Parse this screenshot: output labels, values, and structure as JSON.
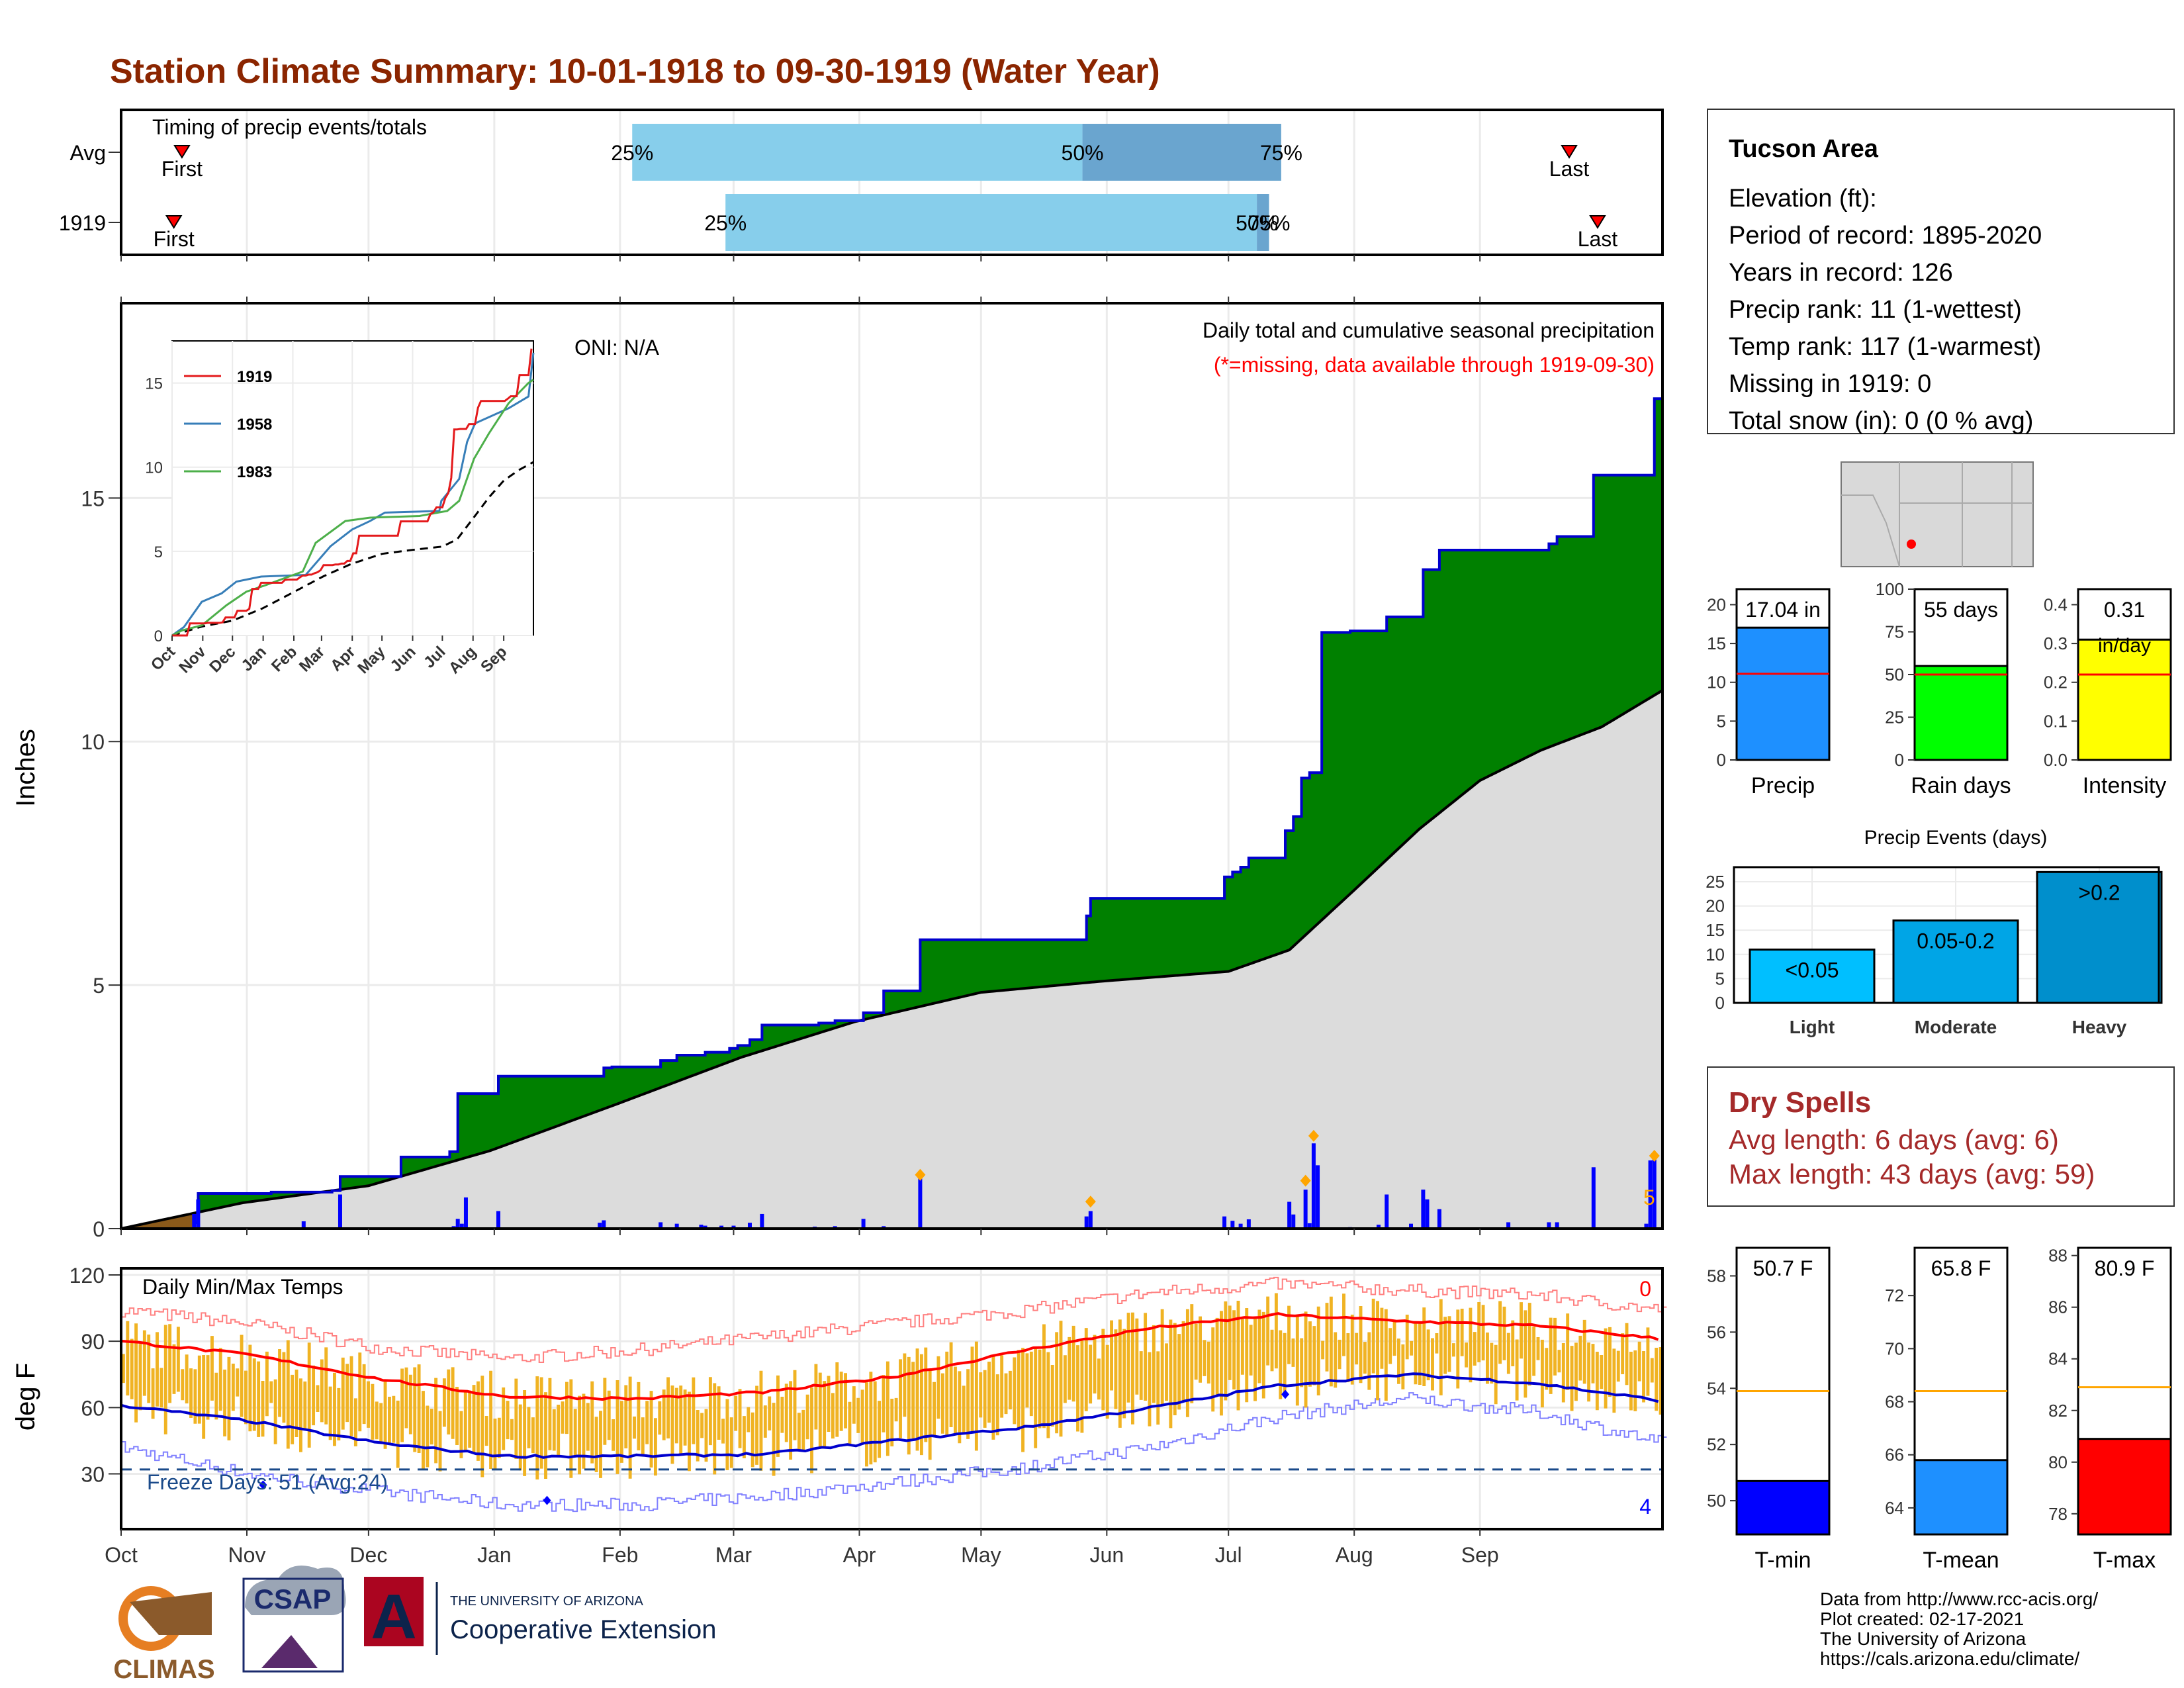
{
  "title": "Station Climate Summary: 10-01-1918 to 09-30-1919 (Water Year)",
  "colors": {
    "title": "#8b2500",
    "precip_bar": "#1e90ff",
    "rain_days": "#00ff00",
    "intensity": "#ffff00",
    "temp_range": "#f0b323",
    "cum_above": "#008000",
    "cum_below": "#8b5a1a",
    "avg_fill": "#dcdcdc",
    "tmin": "#0000ff",
    "tmean": "#1e90ff",
    "tmax": "#ff0000",
    "dry_spell": "#a52a2a"
  },
  "months": [
    "Oct",
    "Nov",
    "Dec",
    "Jan",
    "Feb",
    "Mar",
    "Apr",
    "May",
    "Jun",
    "Jul",
    "Aug",
    "Sep"
  ],
  "timing": {
    "title": "Timing of precip events/totals",
    "rows": [
      {
        "label": "Avg",
        "first_label": "First",
        "last_label": "Last",
        "first_day": 15,
        "last_day": 357,
        "p25": 126,
        "p50": 237,
        "p75": 286,
        "l25": "25%",
        "l50": "50%",
        "l75": "75%"
      },
      {
        "label": "1919",
        "first_label": "First",
        "last_label": "Last",
        "first_day": 13,
        "last_day": 364,
        "p25": 149,
        "p50": 280,
        "p75": 283,
        "l25": "25%",
        "l50": "50%",
        "l75": "75%"
      }
    ]
  },
  "info": {
    "title": "Tucson Area",
    "lines": [
      "Elevation (ft):",
      "Period of record: 1895-2020",
      "Years in record: 126",
      "Precip rank: 11 (1-wettest)",
      "Temp rank: 117 (1-warmest)",
      "Missing in 1919: 0",
      "Total snow (in): 0 (0 % avg)"
    ]
  },
  "precip": {
    "ylabel": "Inches",
    "note": "Daily total and cumulative seasonal precipitation",
    "missing_note": "(*=missing, data available through 1919-09-30)",
    "oni": "ONI: N/A",
    "end_label": "5",
    "y_ticks": [
      0,
      5,
      10,
      15
    ],
    "ylim": [
      0,
      19
    ],
    "cum_1919": [
      [
        0,
        0
      ],
      [
        18,
        0.12
      ],
      [
        19,
        0.72
      ],
      [
        35,
        0.72
      ],
      [
        37,
        0.75
      ],
      [
        45,
        0.75
      ],
      [
        52,
        0.78
      ],
      [
        54,
        1.07
      ],
      [
        67,
        1.07
      ],
      [
        69,
        1.47
      ],
      [
        73,
        1.47
      ],
      [
        81,
        1.58
      ],
      [
        83,
        2.77
      ],
      [
        91,
        2.77
      ],
      [
        93,
        3.13
      ],
      [
        117,
        3.13
      ],
      [
        119,
        3.3
      ],
      [
        121,
        3.32
      ],
      [
        132,
        3.32
      ],
      [
        133,
        3.45
      ],
      [
        135,
        3.45
      ],
      [
        137,
        3.56
      ],
      [
        142,
        3.56
      ],
      [
        144,
        3.62
      ],
      [
        148,
        3.62
      ],
      [
        150,
        3.7
      ],
      [
        152,
        3.76
      ],
      [
        155,
        3.88
      ],
      [
        158,
        4.18
      ],
      [
        170,
        4.18
      ],
      [
        172,
        4.22
      ],
      [
        176,
        4.27
      ],
      [
        181,
        4.27
      ],
      [
        183,
        4.43
      ],
      [
        187,
        4.43
      ],
      [
        188,
        4.88
      ],
      [
        195,
        4.88
      ],
      [
        197,
        5.93
      ],
      [
        237,
        5.93
      ],
      [
        238,
        6.42
      ],
      [
        239,
        6.78
      ],
      [
        267,
        6.78
      ],
      [
        271,
        6.78
      ],
      [
        272,
        7.22
      ],
      [
        274,
        7.32
      ],
      [
        276,
        7.42
      ],
      [
        278,
        7.61
      ],
      [
        285,
        7.61
      ],
      [
        287,
        8.17
      ],
      [
        289,
        8.46
      ],
      [
        291,
        9.25
      ],
      [
        293,
        9.36
      ],
      [
        296,
        12.24
      ],
      [
        300,
        12.24
      ],
      [
        303,
        12.27
      ],
      [
        310,
        12.27
      ],
      [
        312,
        12.56
      ],
      [
        318,
        12.56
      ],
      [
        321,
        13.53
      ],
      [
        325,
        13.93
      ],
      [
        350,
        13.93
      ],
      [
        352,
        14.06
      ],
      [
        354,
        14.21
      ],
      [
        362,
        14.21
      ],
      [
        363,
        15.47
      ],
      [
        376,
        15.47
      ],
      [
        378,
        17.04
      ],
      [
        380,
        17.04
      ]
    ],
    "cum_avg": [
      [
        0,
        0
      ],
      [
        30,
        0.53
      ],
      [
        61,
        0.88
      ],
      [
        91,
        1.6
      ],
      [
        122,
        2.55
      ],
      [
        153,
        3.52
      ],
      [
        181,
        4.25
      ],
      [
        212,
        4.85
      ],
      [
        242,
        5.08
      ],
      [
        273,
        5.28
      ],
      [
        288,
        5.72
      ],
      [
        304,
        6.95
      ],
      [
        320,
        8.2
      ],
      [
        335,
        9.2
      ],
      [
        350,
        9.82
      ],
      [
        365,
        10.3
      ],
      [
        380,
        11.05
      ]
    ],
    "daily": [
      [
        18,
        0.3
      ],
      [
        19,
        0.6
      ],
      [
        45,
        0.15
      ],
      [
        54,
        0.7
      ],
      [
        82,
        0.05
      ],
      [
        83,
        0.2
      ],
      [
        84,
        0.1
      ],
      [
        85,
        0.64
      ],
      [
        93,
        0.36
      ],
      [
        118,
        0.12
      ],
      [
        119,
        0.17
      ],
      [
        133,
        0.13
      ],
      [
        137,
        0.1
      ],
      [
        143,
        0.08
      ],
      [
        144,
        0.06
      ],
      [
        148,
        0.06
      ],
      [
        151,
        0.06
      ],
      [
        155,
        0.12
      ],
      [
        158,
        0.3
      ],
      [
        171,
        0.04
      ],
      [
        176,
        0.05
      ],
      [
        183,
        0.2
      ],
      [
        188,
        0.05
      ],
      [
        197,
        1.05
      ],
      [
        238,
        0.25
      ],
      [
        239,
        0.36
      ],
      [
        272,
        0.25
      ],
      [
        274,
        0.16
      ],
      [
        276,
        0.1
      ],
      [
        278,
        0.19
      ],
      [
        288,
        0.55
      ],
      [
        289,
        0.29
      ],
      [
        292,
        0.8
      ],
      [
        293,
        0.11
      ],
      [
        294,
        1.75
      ],
      [
        295,
        1.3
      ],
      [
        303,
        0.03
      ],
      [
        310,
        0.08
      ],
      [
        312,
        0.7
      ],
      [
        318,
        0.1
      ],
      [
        321,
        0.8
      ],
      [
        322,
        0.6
      ],
      [
        325,
        0.4
      ],
      [
        342,
        0.13
      ],
      [
        352,
        0.13
      ],
      [
        354,
        0.13
      ],
      [
        363,
        1.26
      ],
      [
        376,
        0.1
      ],
      [
        377,
        1.4
      ],
      [
        378,
        1.44
      ]
    ],
    "diamonds": [
      [
        197,
        1.05
      ],
      [
        239,
        0.5
      ],
      [
        294,
        1.85
      ],
      [
        292,
        0.93
      ],
      [
        378,
        1.44
      ]
    ]
  },
  "inset": {
    "series": [
      {
        "name": "1919",
        "color": "#e41a1c"
      },
      {
        "name": "1958",
        "color": "#377eb8"
      },
      {
        "name": "1983",
        "color": "#4daf4a"
      }
    ],
    "y_ticks": [
      0,
      5,
      10,
      15
    ],
    "ylim": [
      0,
      17.5
    ],
    "months": [
      "Oct",
      "Nov",
      "Dec",
      "Jan",
      "Feb",
      "Mar",
      "Apr",
      "May",
      "Jun",
      "Jul",
      "Aug",
      "Sep"
    ],
    "s1958": [
      [
        0,
        0
      ],
      [
        12,
        0.5
      ],
      [
        30,
        2.0
      ],
      [
        50,
        2.5
      ],
      [
        65,
        3.2
      ],
      [
        90,
        3.5
      ],
      [
        135,
        3.6
      ],
      [
        160,
        5.3
      ],
      [
        182,
        6.3
      ],
      [
        200,
        6.8
      ],
      [
        215,
        7.3
      ],
      [
        270,
        7.4
      ],
      [
        272,
        8.0
      ],
      [
        290,
        9.3
      ],
      [
        298,
        11.5
      ],
      [
        306,
        12.6
      ],
      [
        340,
        13.5
      ],
      [
        360,
        14.2
      ],
      [
        365,
        16.8
      ]
    ],
    "s1983": [
      [
        0,
        0
      ],
      [
        10,
        0.3
      ],
      [
        30,
        0.6
      ],
      [
        55,
        1.8
      ],
      [
        75,
        2.6
      ],
      [
        95,
        3.0
      ],
      [
        132,
        3.8
      ],
      [
        145,
        5.5
      ],
      [
        175,
        6.8
      ],
      [
        200,
        7.0
      ],
      [
        250,
        7.1
      ],
      [
        278,
        7.4
      ],
      [
        290,
        8.0
      ],
      [
        305,
        10.5
      ],
      [
        320,
        12.0
      ],
      [
        340,
        13.8
      ],
      [
        360,
        15.0
      ],
      [
        365,
        15.2
      ]
    ],
    "avg": [
      [
        0,
        0
      ],
      [
        30,
        0.53
      ],
      [
        61,
        0.88
      ],
      [
        91,
        1.6
      ],
      [
        122,
        2.55
      ],
      [
        153,
        3.52
      ],
      [
        181,
        4.25
      ],
      [
        212,
        4.85
      ],
      [
        242,
        5.08
      ],
      [
        273,
        5.28
      ],
      [
        288,
        5.72
      ],
      [
        304,
        6.95
      ],
      [
        320,
        8.2
      ],
      [
        335,
        9.2
      ],
      [
        350,
        9.82
      ],
      [
        365,
        10.3
      ]
    ]
  },
  "stats": {
    "precip": {
      "value": 17.04,
      "avg": 11.1,
      "label": "17.04 in",
      "xlabel": "Precip",
      "ticks": [
        0,
        5,
        10,
        15,
        20
      ],
      "ylim": [
        0,
        22
      ]
    },
    "rain_days": {
      "value": 55,
      "avg": 50,
      "label": "55 days",
      "xlabel": "Rain days",
      "ticks": [
        0,
        25,
        50,
        75,
        100
      ],
      "ylim": [
        0,
        100
      ]
    },
    "intensity": {
      "value": 0.31,
      "avg": 0.22,
      "label": "0.31",
      "unit": "in/day",
      "xlabel": "Intensity",
      "ticks": [
        "0.0",
        "0.1",
        "0.2",
        "0.3",
        "0.4"
      ],
      "ylim": [
        0,
        0.44
      ]
    }
  },
  "events": {
    "title": "Precip Events (days)",
    "categories": [
      "Light",
      "Moderate",
      "Heavy"
    ],
    "values": [
      11,
      17,
      27
    ],
    "labels": [
      "<0.05",
      "0.05-0.2",
      ">0.2"
    ],
    "colors": [
      "#00bfff",
      "#00a5e6",
      "#008fcc"
    ],
    "ticks": [
      0,
      5,
      10,
      15,
      20,
      25
    ],
    "ylim": [
      0,
      28
    ]
  },
  "dry": {
    "title": "Dry Spells",
    "avg": "Avg length: 6 days (avg: 6)",
    "max": "Max length: 43 days (avg: 59)"
  },
  "temps": {
    "title": "Daily Min/Max Temps",
    "ylabel": "deg F",
    "ticks": [
      30,
      60,
      90,
      120
    ],
    "ylim": [
      5,
      123
    ],
    "freeze_line": 32,
    "freeze_label": "Freeze Days: 51 (Avg:24)",
    "top_count": "0",
    "bottom_count": "4",
    "avg_max": [
      [
        0,
        90
      ],
      [
        30,
        84
      ],
      [
        61,
        73
      ],
      [
        91,
        65
      ],
      [
        122,
        64
      ],
      [
        153,
        67
      ],
      [
        183,
        74
      ],
      [
        214,
        86
      ],
      [
        244,
        96
      ],
      [
        274,
        102
      ],
      [
        305,
        99
      ],
      [
        335,
        97
      ],
      [
        365,
        91
      ]
    ],
    "avg_min": [
      [
        0,
        61
      ],
      [
        30,
        54
      ],
      [
        61,
        44
      ],
      [
        91,
        38
      ],
      [
        122,
        38
      ],
      [
        153,
        39
      ],
      [
        183,
        45
      ],
      [
        214,
        51
      ],
      [
        244,
        60
      ],
      [
        274,
        70
      ],
      [
        305,
        75
      ],
      [
        335,
        71
      ],
      [
        365,
        63
      ]
    ],
    "rec_max": [
      [
        0,
        104
      ],
      [
        30,
        98
      ],
      [
        61,
        87
      ],
      [
        91,
        82
      ],
      [
        122,
        86
      ],
      [
        153,
        92
      ],
      [
        183,
        98
      ],
      [
        214,
        104
      ],
      [
        244,
        112
      ],
      [
        274,
        116
      ],
      [
        305,
        113
      ],
      [
        335,
        111
      ],
      [
        365,
        104
      ]
    ],
    "rec_min": [
      [
        0,
        42
      ],
      [
        30,
        30
      ],
      [
        61,
        22
      ],
      [
        91,
        16
      ],
      [
        122,
        16
      ],
      [
        153,
        20
      ],
      [
        183,
        26
      ],
      [
        214,
        33
      ],
      [
        244,
        42
      ],
      [
        274,
        56
      ],
      [
        305,
        64
      ],
      [
        335,
        58
      ],
      [
        365,
        44
      ]
    ],
    "freeze_points": [
      [
        35,
        25
      ],
      [
        105,
        18
      ]
    ],
    "rec_points": [
      [
        287,
        66
      ]
    ]
  },
  "temp_stats": {
    "tmin": {
      "value": 50.7,
      "avg": 53.9,
      "label": "50.7 F",
      "xlabel": "T-min",
      "ticks": [
        50,
        52,
        54,
        56,
        58
      ],
      "ylim": [
        48.8,
        59
      ]
    },
    "tmean": {
      "value": 65.8,
      "avg": 68.4,
      "label": "65.8 F",
      "xlabel": "T-mean",
      "ticks": [
        64,
        66,
        68,
        70,
        72
      ],
      "ylim": [
        63,
        73.8
      ]
    },
    "tmax": {
      "value": 80.9,
      "avg": 82.9,
      "label": "80.9 F",
      "xlabel": "T-max",
      "ticks": [
        78,
        80,
        82,
        84,
        86,
        88
      ],
      "ylim": [
        77.2,
        88.3
      ]
    }
  },
  "footer": {
    "lines": [
      "Data from http://www.rcc-acis.org/",
      "Plot created: 02-17-2021",
      "The University of Arizona",
      "https://cals.arizona.edu/climate/"
    ],
    "climas": "CLIMAS",
    "csap": "CSAP",
    "ua_small": "THE UNIVERSITY OF ARIZONA",
    "ua_big": "Cooperative Extension"
  }
}
